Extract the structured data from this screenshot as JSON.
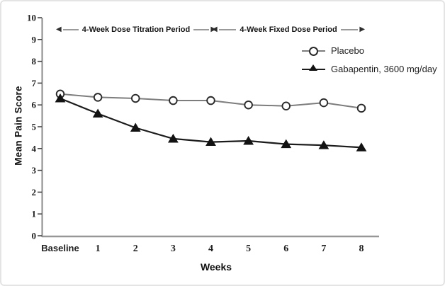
{
  "frame": {
    "background": "#ffffff",
    "border_color": "#e4e4e4"
  },
  "chart_data": {
    "type": "line",
    "title": "",
    "categories": [
      "Baseline",
      "1",
      "2",
      "3",
      "4",
      "5",
      "6",
      "7",
      "8"
    ],
    "xlabel": "Weeks",
    "ylabel": "Mean Pain Score",
    "ylim": [
      0,
      10
    ],
    "ytick_interval": 1,
    "grid": false,
    "legend_position": "upper right",
    "series": [
      {
        "name": "Placebo",
        "marker": "circle",
        "line_color": "#7d7d7d",
        "marker_fill": "#ffffff",
        "marker_stroke": "#2a2a2a",
        "values": [
          6.5,
          6.35,
          6.3,
          6.2,
          6.2,
          6.0,
          5.95,
          6.1,
          5.85
        ]
      },
      {
        "name": "Gabapentin, 3600 mg/day",
        "marker": "triangle",
        "line_color": "#1b1b1b",
        "marker_fill": "#121212",
        "marker_stroke": "#121212",
        "values": [
          6.3,
          5.6,
          4.95,
          4.45,
          4.3,
          4.35,
          4.2,
          4.15,
          4.05
        ]
      }
    ],
    "annotations": [
      {
        "label": "4-Week Dose Titration Period",
        "x_span": [
          "Baseline",
          "4"
        ]
      },
      {
        "label": "4-Week Fixed Dose Period",
        "x_span": [
          "4",
          "8"
        ]
      }
    ],
    "axis_colors": {
      "x_axis": "#979797",
      "y_axis": "#8a8a8a",
      "ticks": "#3a3a3a",
      "tick_labels": "#1f1f1f"
    }
  }
}
